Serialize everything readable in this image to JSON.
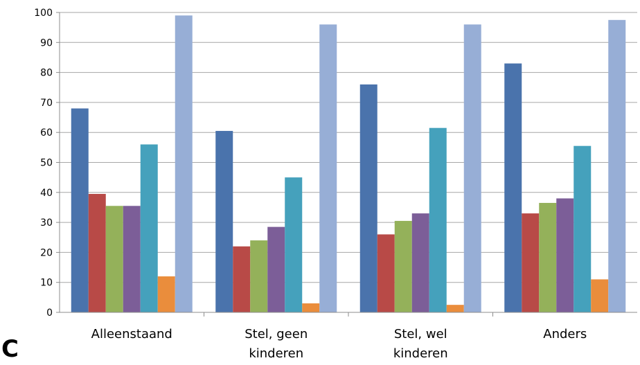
{
  "panel_label": "C",
  "chart_data": {
    "type": "bar",
    "categories": [
      [
        "Alleenstaand"
      ],
      [
        "Stel, geen",
        "kinderen"
      ],
      [
        "Stel, wel",
        "kinderen"
      ],
      [
        "Anders"
      ]
    ],
    "ylim": [
      0,
      100
    ],
    "yticks": [
      0,
      10,
      20,
      30,
      40,
      50,
      60,
      70,
      80,
      90,
      100
    ],
    "grid": true,
    "series_colors": [
      "#4a73ac",
      "#b84a47",
      "#94b15a",
      "#7c5e98",
      "#45a1bc",
      "#ea8d3c",
      "#97aed6"
    ],
    "series": [
      {
        "values": [
          68,
          60.5,
          76,
          83
        ]
      },
      {
        "values": [
          39.5,
          22,
          26,
          33
        ]
      },
      {
        "values": [
          35.5,
          24,
          30.5,
          36.5
        ]
      },
      {
        "values": [
          35.5,
          28.5,
          33,
          38
        ]
      },
      {
        "values": [
          56,
          45,
          61.5,
          55.5
        ]
      },
      {
        "values": [
          12,
          3,
          2.5,
          11
        ]
      },
      {
        "values": [
          99,
          96,
          96,
          97.5
        ]
      }
    ]
  }
}
